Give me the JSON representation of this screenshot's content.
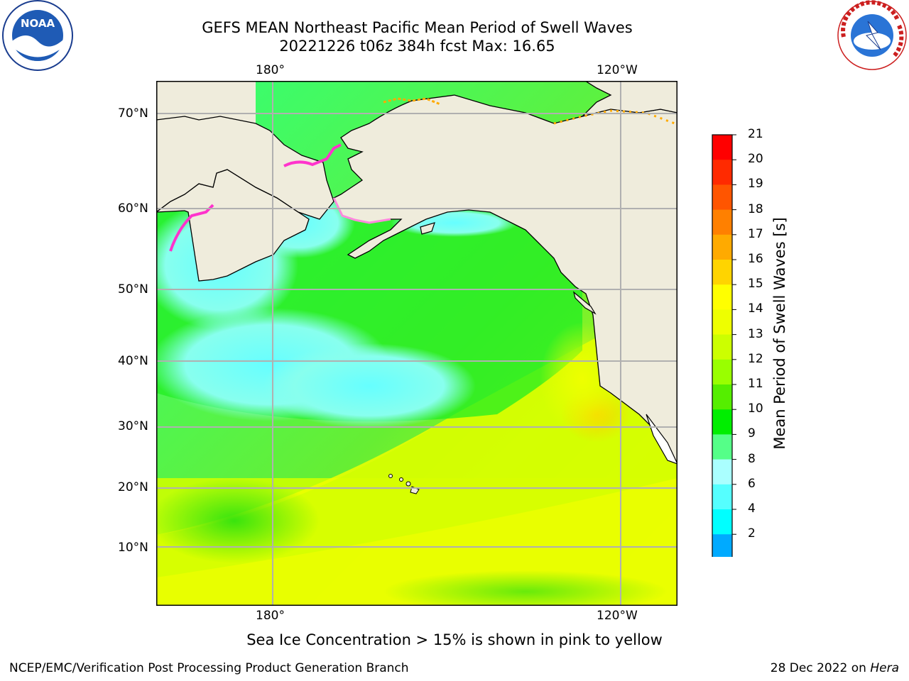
{
  "title": {
    "line1": "GEFS MEAN Northeast Pacific Mean Period of Swell Waves",
    "line2": "20221226 t06z 384h fcst   Max: 16.65"
  },
  "map": {
    "lon_ticks_top": [
      "180°",
      "120°W"
    ],
    "lon_ticks_bottom": [
      "180°",
      "120°W"
    ],
    "lat_ticks": [
      "70°N",
      "60°N",
      "50°N",
      "40°N",
      "30°N",
      "20°N",
      "10°N"
    ],
    "land_color": "#efecdc",
    "grid_color": "#b0b0b0"
  },
  "colorbar": {
    "label": "Mean Period of Swell Waves [s]",
    "ticks": [
      "21",
      "20",
      "19",
      "18",
      "17",
      "16",
      "15",
      "14",
      "13",
      "12",
      "11",
      "10",
      "9",
      "8",
      "6",
      "4",
      "2"
    ],
    "colors_top_to_bottom": [
      "#ff0000",
      "#ff2a00",
      "#ff5500",
      "#ff8000",
      "#ffaa00",
      "#ffd400",
      "#ffff00",
      "#eeff00",
      "#ccff00",
      "#99ff00",
      "#55ee00",
      "#00ee00",
      "#55ff88",
      "#aaffff",
      "#55ffff",
      "#00ffff",
      "#00aaff",
      "#0066ff"
    ],
    "extend_color": "#0000ff"
  },
  "logos": {
    "noaa_text": "NOAA",
    "nws_text": "NATIONAL WEATHER SERVICE"
  },
  "footer": {
    "note": "Sea Ice Concentration > 15% is shown in pink to yellow",
    "credit": "NCEP/EMC/Verification Post Processing Product Generation Branch",
    "date_prefix": "28 Dec 2022 on ",
    "date_machine": "Hera"
  }
}
